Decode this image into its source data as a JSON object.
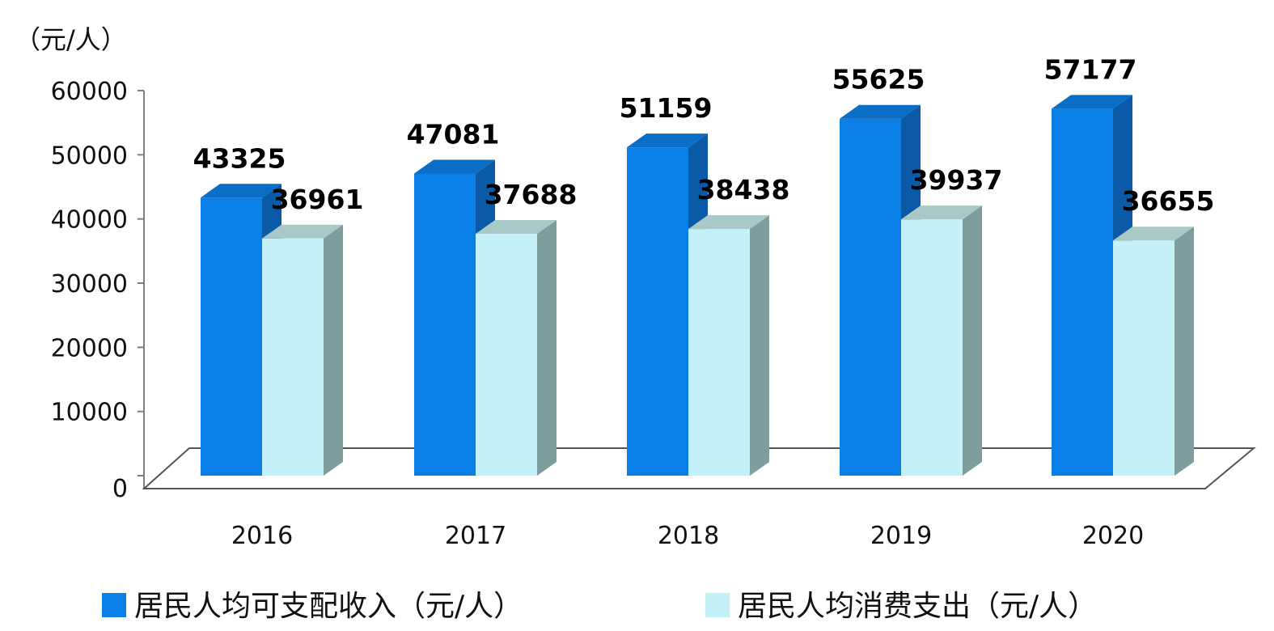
{
  "chart_data": {
    "type": "bar",
    "unit_label": "（元/人）",
    "categories": [
      "2016",
      "2017",
      "2018",
      "2019",
      "2020"
    ],
    "series": [
      {
        "name": "居民人均可支配收入（元/人）",
        "color": "#0a7fe6",
        "side_color": "#0b5aa8",
        "top_color": "#0a6dc6",
        "values": [
          43325,
          47081,
          51159,
          55625,
          57177
        ]
      },
      {
        "name": "居民人均消费支出（元/人）",
        "color": "#c4f0f7",
        "side_color": "#7e9d9d",
        "top_color": "#a9c9c9",
        "values": [
          36961,
          37688,
          38438,
          39937,
          36655
        ]
      }
    ],
    "y_ticks": [
      "0",
      "10000",
      "20000",
      "30000",
      "40000",
      "50000",
      "60000"
    ],
    "ylim": [
      0,
      60000
    ],
    "style": "3d-clustered-column",
    "legend": "bottom"
  }
}
